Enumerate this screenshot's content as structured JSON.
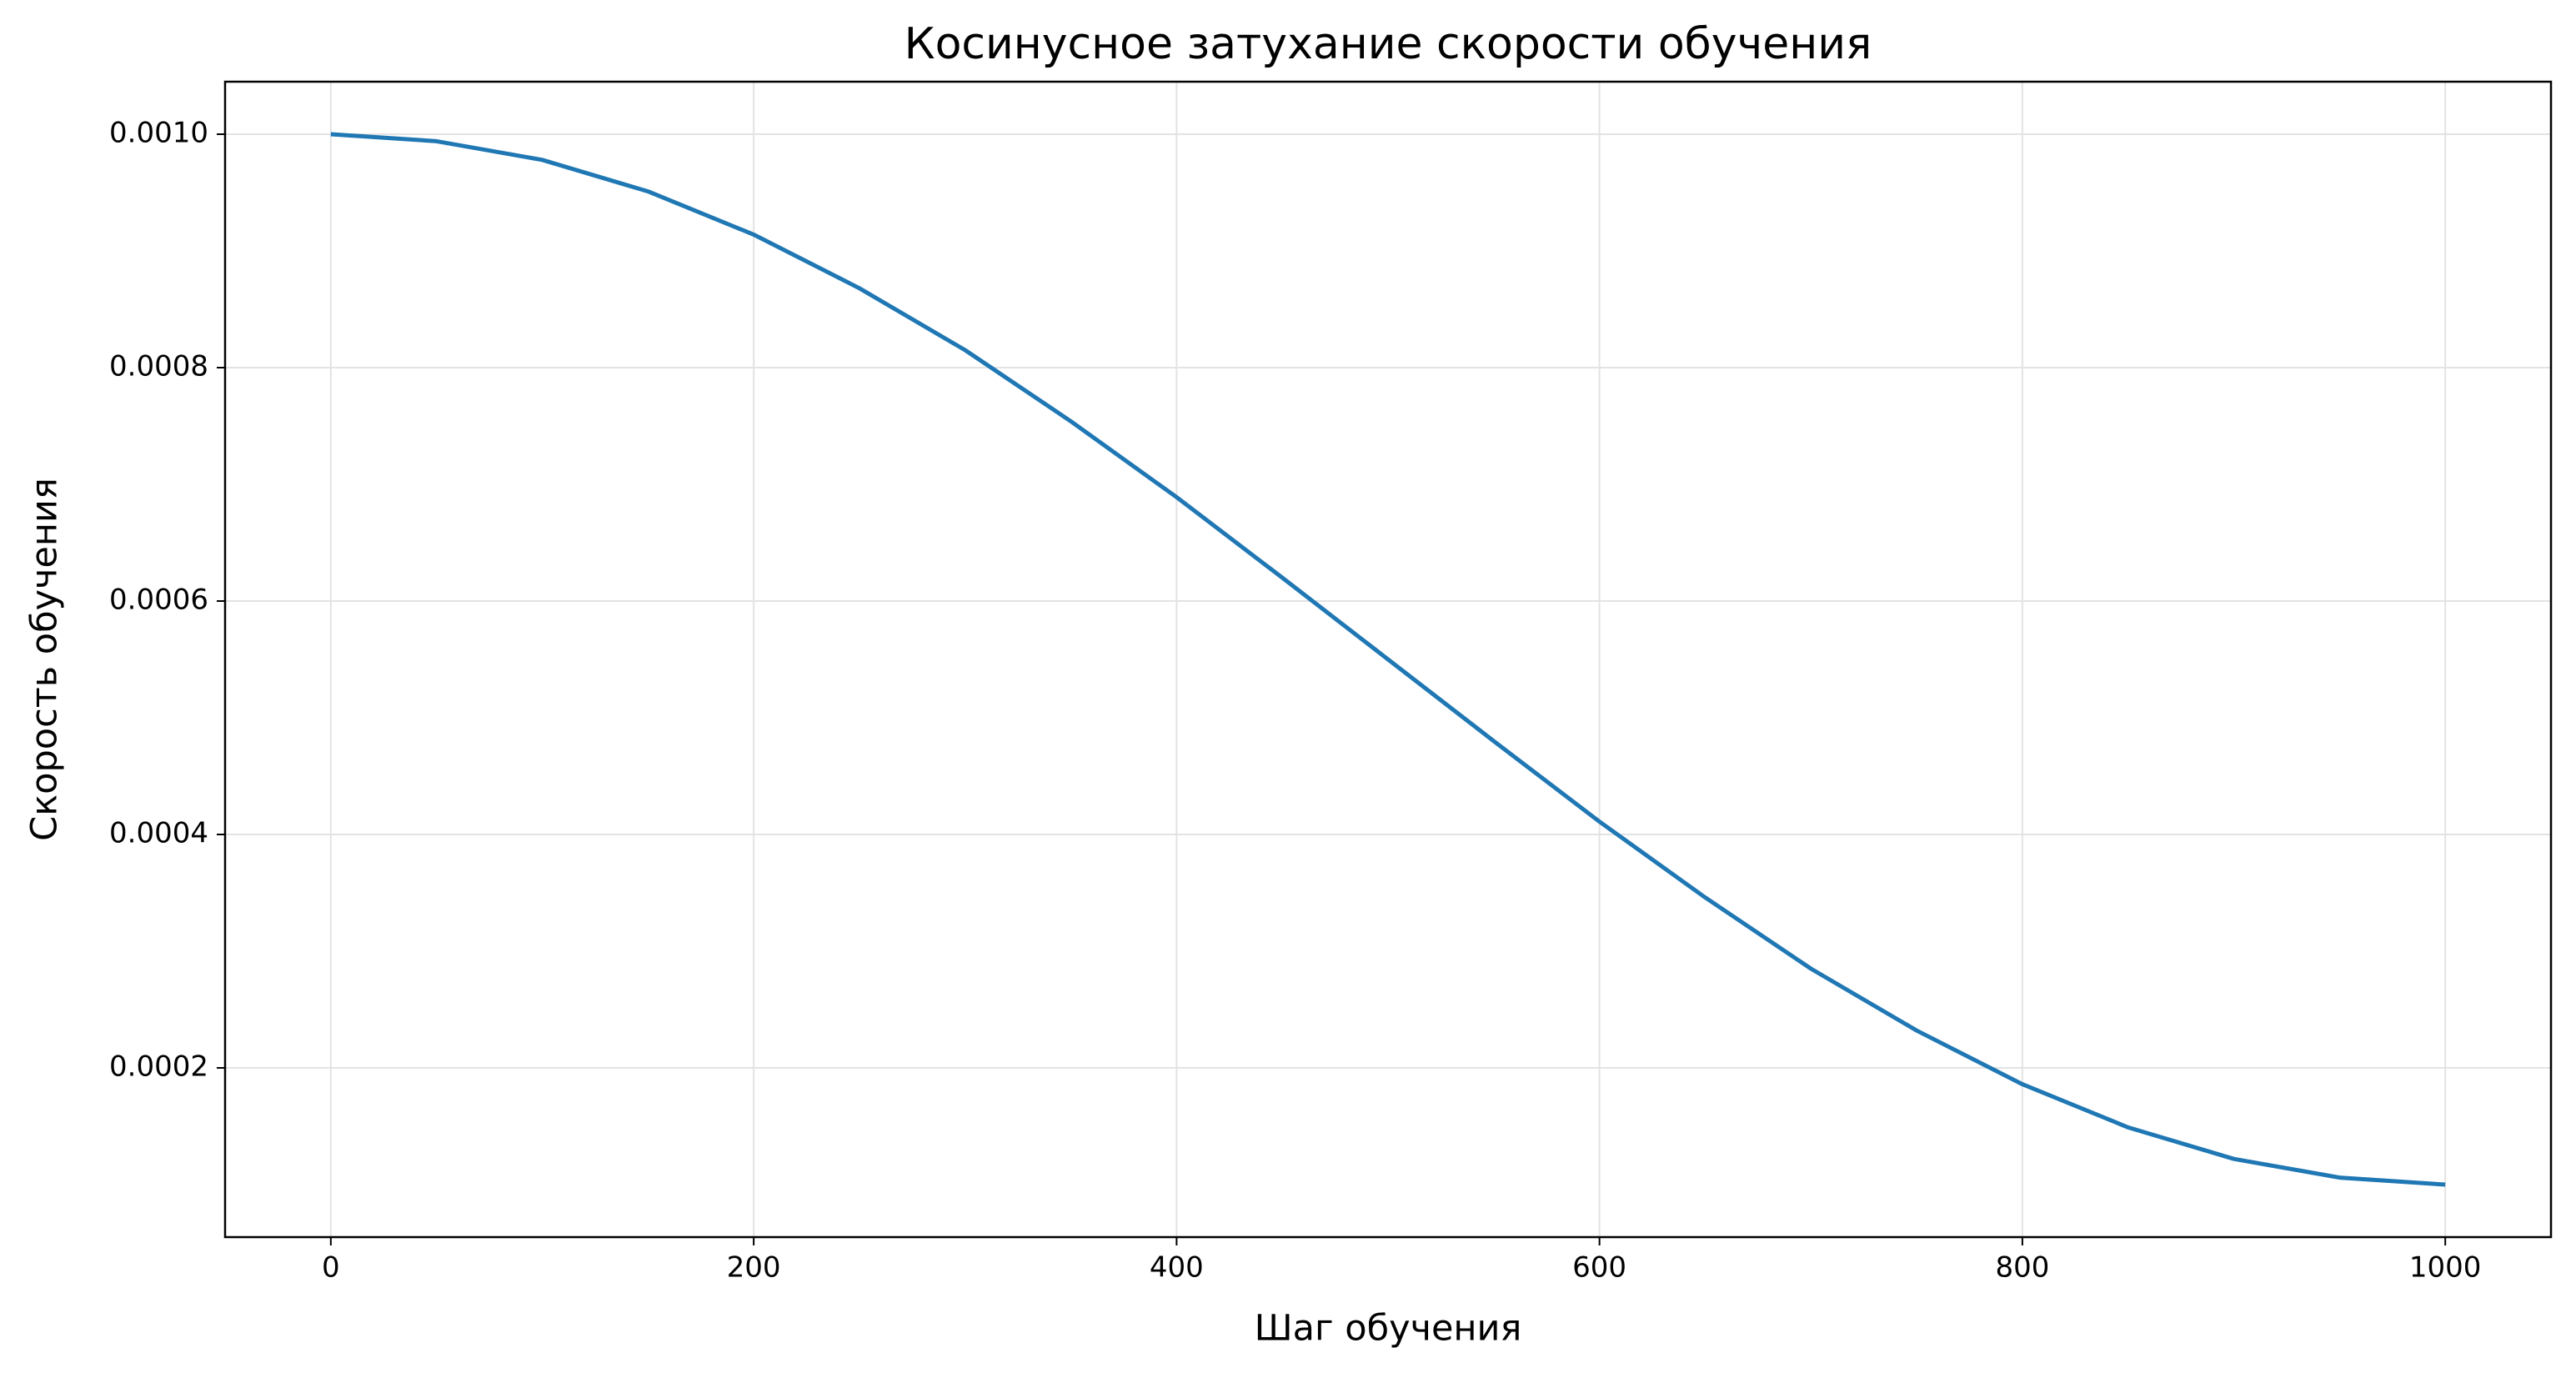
{
  "chart_data": {
    "type": "line",
    "title": "Косинусное затухание скорости обучения",
    "x_label": "Шаг обучения",
    "y_label": "Скорость обучения",
    "x": [
      0,
      50,
      100,
      150,
      200,
      250,
      300,
      350,
      400,
      450,
      500,
      550,
      600,
      650,
      700,
      750,
      800,
      850,
      900,
      950,
      1000
    ],
    "series": [
      {
        "color": "#1f77b4",
        "values": [
          0.001,
          0.000994,
          0.000978,
          0.000951,
          0.000914,
          0.000868,
          0.000815,
          0.000754,
          0.000689,
          0.00062,
          0.00055,
          0.00048,
          0.000411,
          0.000346,
          0.000285,
          0.000232,
          0.000186,
          0.000149,
          0.000122,
          0.000106,
          0.0001
        ]
      }
    ],
    "xlim": [
      -50,
      1050
    ],
    "ylim": [
      5.5e-05,
      0.001045
    ],
    "xticks": [
      0,
      200,
      400,
      600,
      800,
      1000
    ],
    "yticks": [
      {
        "value": 0.0002,
        "label": "0.0002"
      },
      {
        "value": 0.0004,
        "label": "0.0004"
      },
      {
        "value": 0.0006,
        "label": "0.0006"
      },
      {
        "value": 0.0008,
        "label": "0.0008"
      },
      {
        "value": 0.001,
        "label": "0.0010"
      }
    ],
    "grid": true
  }
}
